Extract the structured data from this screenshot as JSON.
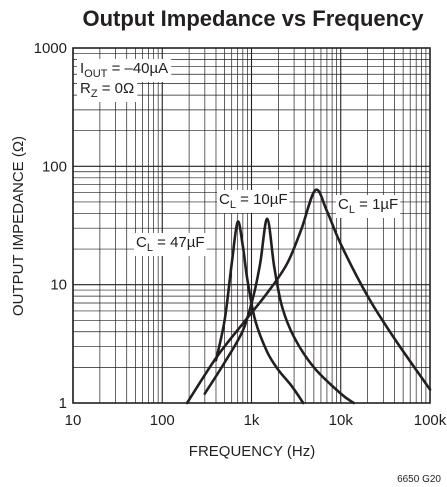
{
  "figure_note": "6650 G20",
  "chart_data": {
    "type": "line",
    "title": "Output Impedance vs Frequency",
    "xlabel": "FREQUENCY (Hz)",
    "ylabel": "OUTPUT IMPEDANCE (Ω)",
    "x_scale": "log",
    "y_scale": "log",
    "xlim": [
      10,
      100000
    ],
    "ylim": [
      1,
      1000
    ],
    "x_ticks": [
      {
        "value": 10,
        "label": "10"
      },
      {
        "value": 100,
        "label": "100"
      },
      {
        "value": 1000,
        "label": "1k"
      },
      {
        "value": 10000,
        "label": "10k"
      },
      {
        "value": 100000,
        "label": "100k"
      }
    ],
    "y_ticks": [
      {
        "value": 1,
        "label": "1"
      },
      {
        "value": 10,
        "label": "10"
      },
      {
        "value": 100,
        "label": "100"
      },
      {
        "value": 1000,
        "label": "1000"
      }
    ],
    "grid": true,
    "conditions": {
      "line1": {
        "pre": "I",
        "sub": "OUT",
        "post": " = –40µA"
      },
      "line2": {
        "pre": "R",
        "sub": "Z",
        "post": " = 0Ω"
      }
    },
    "series": [
      {
        "name": "C_L = 1µF",
        "label": {
          "pre": "C",
          "sub": "L",
          "post": " = 1µF"
        },
        "x": [
          190,
          400,
          800,
          1500,
          2500,
          3600,
          5200,
          7000,
          10000,
          20000,
          40000,
          100000
        ],
        "y": [
          1,
          2.4,
          4.7,
          8.5,
          15,
          29,
          63,
          42,
          22,
          8,
          3.5,
          1.3
        ]
      },
      {
        "name": "C_L = 10µF",
        "label": {
          "pre": "C",
          "sub": "L",
          "post": " = 10µF"
        },
        "x": [
          300,
          500,
          800,
          1050,
          1250,
          1500,
          1800,
          2200,
          3000,
          5000,
          10000,
          14000
        ],
        "y": [
          1.2,
          2.2,
          4.1,
          8,
          15,
          36,
          14,
          6.5,
          3.6,
          2,
          1.2,
          1
        ]
      },
      {
        "name": "C_L = 47µF",
        "label": {
          "pre": "C",
          "sub": "L",
          "post": " = 47µF"
        },
        "x": [
          400,
          500,
          600,
          700,
          800,
          900,
          1100,
          1500,
          2000,
          2800,
          3800
        ],
        "y": [
          2.3,
          5,
          15,
          34,
          21,
          11,
          5,
          2.7,
          1.9,
          1.4,
          1
        ]
      }
    ]
  }
}
